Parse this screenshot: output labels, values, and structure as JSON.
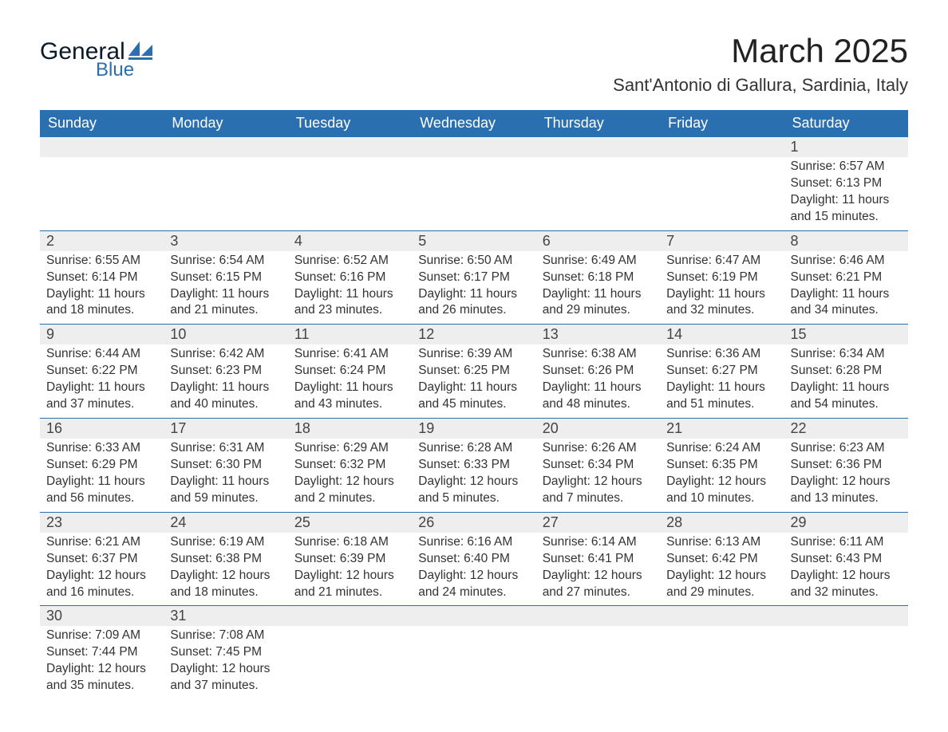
{
  "logo": {
    "general": "General",
    "blue": "Blue",
    "shape_color": "#2a6fb0"
  },
  "header": {
    "month": "March 2025",
    "location": "Sant'Antonio di Gallura, Sardinia, Italy"
  },
  "colors": {
    "header_bg": "#2a6fb0",
    "header_text": "#ffffff",
    "daynum_bg": "#eeeeee",
    "row_border": "#2a6fb0",
    "body_text": "#333333",
    "background": "#ffffff"
  },
  "days_of_week": [
    "Sunday",
    "Monday",
    "Tuesday",
    "Wednesday",
    "Thursday",
    "Friday",
    "Saturday"
  ],
  "weeks": [
    [
      null,
      null,
      null,
      null,
      null,
      null,
      {
        "num": "1",
        "sunrise": "Sunrise: 6:57 AM",
        "sunset": "Sunset: 6:13 PM",
        "dl1": "Daylight: 11 hours",
        "dl2": "and 15 minutes."
      }
    ],
    [
      {
        "num": "2",
        "sunrise": "Sunrise: 6:55 AM",
        "sunset": "Sunset: 6:14 PM",
        "dl1": "Daylight: 11 hours",
        "dl2": "and 18 minutes."
      },
      {
        "num": "3",
        "sunrise": "Sunrise: 6:54 AM",
        "sunset": "Sunset: 6:15 PM",
        "dl1": "Daylight: 11 hours",
        "dl2": "and 21 minutes."
      },
      {
        "num": "4",
        "sunrise": "Sunrise: 6:52 AM",
        "sunset": "Sunset: 6:16 PM",
        "dl1": "Daylight: 11 hours",
        "dl2": "and 23 minutes."
      },
      {
        "num": "5",
        "sunrise": "Sunrise: 6:50 AM",
        "sunset": "Sunset: 6:17 PM",
        "dl1": "Daylight: 11 hours",
        "dl2": "and 26 minutes."
      },
      {
        "num": "6",
        "sunrise": "Sunrise: 6:49 AM",
        "sunset": "Sunset: 6:18 PM",
        "dl1": "Daylight: 11 hours",
        "dl2": "and 29 minutes."
      },
      {
        "num": "7",
        "sunrise": "Sunrise: 6:47 AM",
        "sunset": "Sunset: 6:19 PM",
        "dl1": "Daylight: 11 hours",
        "dl2": "and 32 minutes."
      },
      {
        "num": "8",
        "sunrise": "Sunrise: 6:46 AM",
        "sunset": "Sunset: 6:21 PM",
        "dl1": "Daylight: 11 hours",
        "dl2": "and 34 minutes."
      }
    ],
    [
      {
        "num": "9",
        "sunrise": "Sunrise: 6:44 AM",
        "sunset": "Sunset: 6:22 PM",
        "dl1": "Daylight: 11 hours",
        "dl2": "and 37 minutes."
      },
      {
        "num": "10",
        "sunrise": "Sunrise: 6:42 AM",
        "sunset": "Sunset: 6:23 PM",
        "dl1": "Daylight: 11 hours",
        "dl2": "and 40 minutes."
      },
      {
        "num": "11",
        "sunrise": "Sunrise: 6:41 AM",
        "sunset": "Sunset: 6:24 PM",
        "dl1": "Daylight: 11 hours",
        "dl2": "and 43 minutes."
      },
      {
        "num": "12",
        "sunrise": "Sunrise: 6:39 AM",
        "sunset": "Sunset: 6:25 PM",
        "dl1": "Daylight: 11 hours",
        "dl2": "and 45 minutes."
      },
      {
        "num": "13",
        "sunrise": "Sunrise: 6:38 AM",
        "sunset": "Sunset: 6:26 PM",
        "dl1": "Daylight: 11 hours",
        "dl2": "and 48 minutes."
      },
      {
        "num": "14",
        "sunrise": "Sunrise: 6:36 AM",
        "sunset": "Sunset: 6:27 PM",
        "dl1": "Daylight: 11 hours",
        "dl2": "and 51 minutes."
      },
      {
        "num": "15",
        "sunrise": "Sunrise: 6:34 AM",
        "sunset": "Sunset: 6:28 PM",
        "dl1": "Daylight: 11 hours",
        "dl2": "and 54 minutes."
      }
    ],
    [
      {
        "num": "16",
        "sunrise": "Sunrise: 6:33 AM",
        "sunset": "Sunset: 6:29 PM",
        "dl1": "Daylight: 11 hours",
        "dl2": "and 56 minutes."
      },
      {
        "num": "17",
        "sunrise": "Sunrise: 6:31 AM",
        "sunset": "Sunset: 6:30 PM",
        "dl1": "Daylight: 11 hours",
        "dl2": "and 59 minutes."
      },
      {
        "num": "18",
        "sunrise": "Sunrise: 6:29 AM",
        "sunset": "Sunset: 6:32 PM",
        "dl1": "Daylight: 12 hours",
        "dl2": "and 2 minutes."
      },
      {
        "num": "19",
        "sunrise": "Sunrise: 6:28 AM",
        "sunset": "Sunset: 6:33 PM",
        "dl1": "Daylight: 12 hours",
        "dl2": "and 5 minutes."
      },
      {
        "num": "20",
        "sunrise": "Sunrise: 6:26 AM",
        "sunset": "Sunset: 6:34 PM",
        "dl1": "Daylight: 12 hours",
        "dl2": "and 7 minutes."
      },
      {
        "num": "21",
        "sunrise": "Sunrise: 6:24 AM",
        "sunset": "Sunset: 6:35 PM",
        "dl1": "Daylight: 12 hours",
        "dl2": "and 10 minutes."
      },
      {
        "num": "22",
        "sunrise": "Sunrise: 6:23 AM",
        "sunset": "Sunset: 6:36 PM",
        "dl1": "Daylight: 12 hours",
        "dl2": "and 13 minutes."
      }
    ],
    [
      {
        "num": "23",
        "sunrise": "Sunrise: 6:21 AM",
        "sunset": "Sunset: 6:37 PM",
        "dl1": "Daylight: 12 hours",
        "dl2": "and 16 minutes."
      },
      {
        "num": "24",
        "sunrise": "Sunrise: 6:19 AM",
        "sunset": "Sunset: 6:38 PM",
        "dl1": "Daylight: 12 hours",
        "dl2": "and 18 minutes."
      },
      {
        "num": "25",
        "sunrise": "Sunrise: 6:18 AM",
        "sunset": "Sunset: 6:39 PM",
        "dl1": "Daylight: 12 hours",
        "dl2": "and 21 minutes."
      },
      {
        "num": "26",
        "sunrise": "Sunrise: 6:16 AM",
        "sunset": "Sunset: 6:40 PM",
        "dl1": "Daylight: 12 hours",
        "dl2": "and 24 minutes."
      },
      {
        "num": "27",
        "sunrise": "Sunrise: 6:14 AM",
        "sunset": "Sunset: 6:41 PM",
        "dl1": "Daylight: 12 hours",
        "dl2": "and 27 minutes."
      },
      {
        "num": "28",
        "sunrise": "Sunrise: 6:13 AM",
        "sunset": "Sunset: 6:42 PM",
        "dl1": "Daylight: 12 hours",
        "dl2": "and 29 minutes."
      },
      {
        "num": "29",
        "sunrise": "Sunrise: 6:11 AM",
        "sunset": "Sunset: 6:43 PM",
        "dl1": "Daylight: 12 hours",
        "dl2": "and 32 minutes."
      }
    ],
    [
      {
        "num": "30",
        "sunrise": "Sunrise: 7:09 AM",
        "sunset": "Sunset: 7:44 PM",
        "dl1": "Daylight: 12 hours",
        "dl2": "and 35 minutes."
      },
      {
        "num": "31",
        "sunrise": "Sunrise: 7:08 AM",
        "sunset": "Sunset: 7:45 PM",
        "dl1": "Daylight: 12 hours",
        "dl2": "and 37 minutes."
      },
      null,
      null,
      null,
      null,
      null
    ]
  ]
}
